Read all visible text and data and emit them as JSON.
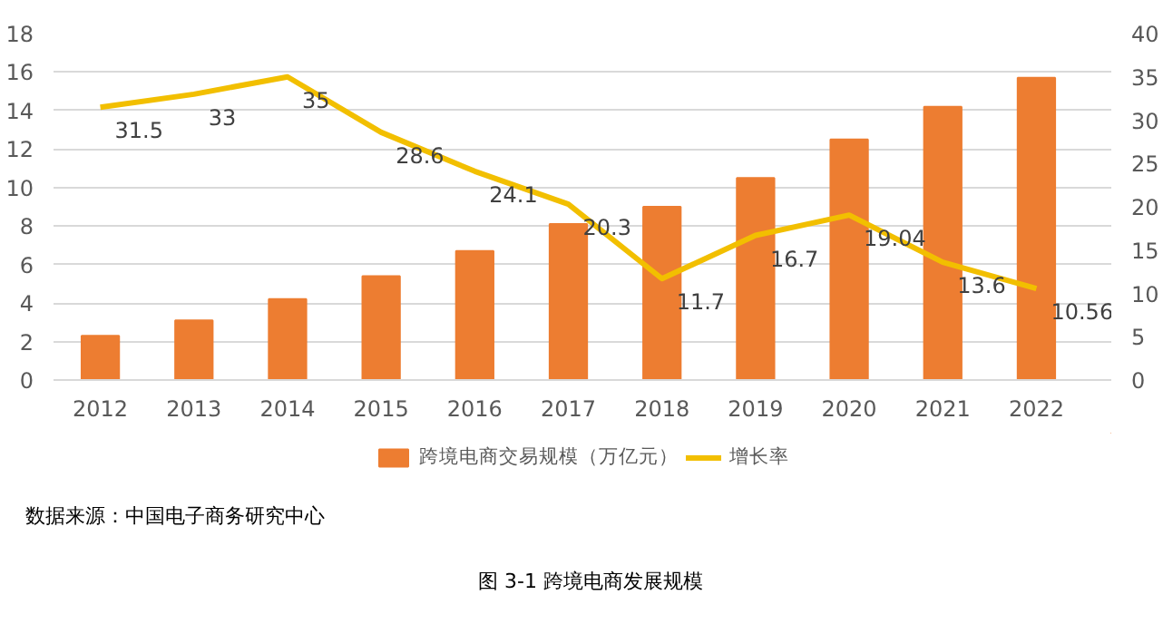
{
  "chart_data": {
    "type": "bar",
    "title": "图 3-1 跨境电商发展规模",
    "annotations": [
      "数据来源：中国电子商务研究中心"
    ],
    "categories": [
      "2012",
      "2013",
      "2014",
      "2015",
      "2016",
      "2017",
      "2018",
      "2019",
      "2020",
      "2021",
      "2022"
    ],
    "series": [
      {
        "name": "跨境电商交易规模（万亿元）",
        "color": "#ed7d31",
        "values": [
          2.3,
          3.1,
          4.2,
          5.4,
          6.7,
          8.1,
          9.0,
          10.5,
          12.5,
          14.2,
          15.7
        ]
      },
      {
        "name": "增长率",
        "type": "line",
        "axis": "y2",
        "color": "#f2bf00",
        "values": [
          31.5,
          33,
          35,
          28.6,
          24.1,
          20.3,
          11.7,
          16.7,
          19.04,
          13.6,
          10.56
        ],
        "value_labels": [
          "31.5",
          "33",
          "35",
          "28.6",
          "24.1",
          "20.3",
          "11.7",
          "16.7",
          "19.04",
          "13.6",
          "10.56"
        ]
      }
    ],
    "ylim": [
      0,
      18
    ],
    "yticks": [
      0,
      2,
      4,
      6,
      8,
      10,
      12,
      14,
      16,
      18
    ],
    "y2lim": [
      0,
      40
    ],
    "y2ticks": [
      0,
      5,
      10,
      15,
      20,
      25,
      30,
      35,
      40
    ],
    "grid": "y",
    "legend": "bottom"
  }
}
